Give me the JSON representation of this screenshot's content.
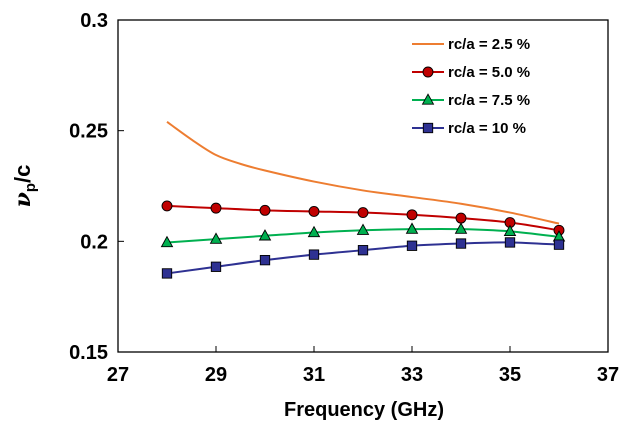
{
  "chart_data": {
    "type": "line",
    "xlabel": "Frequency (GHz)",
    "ylabel_base": "ν",
    "ylabel_sub": "p",
    "ylabel_rest": "/c",
    "xlim": [
      27,
      37
    ],
    "ylim": [
      0.15,
      0.3
    ],
    "xticks": [
      27,
      29,
      31,
      33,
      35,
      37
    ],
    "yticks": [
      0.15,
      0.2,
      0.25,
      0.3
    ],
    "ytick_labels": [
      "0.15",
      "0.2",
      "0.25",
      "0.3"
    ],
    "grid": false,
    "legend_position": "top-right",
    "series": [
      {
        "name": "rc/a = 2.5 %",
        "color": "#ED7D31",
        "marker": "none",
        "x": [
          28,
          28.5,
          29,
          29.5,
          30,
          31,
          32,
          33,
          34,
          35,
          36
        ],
        "y": [
          0.254,
          0.246,
          0.239,
          0.235,
          0.232,
          0.227,
          0.223,
          0.22,
          0.217,
          0.213,
          0.208
        ]
      },
      {
        "name": "rc/a = 5.0 %",
        "color": "#C00000",
        "marker": "circle",
        "x": [
          28,
          29,
          30,
          31,
          32,
          33,
          34,
          35,
          36
        ],
        "y": [
          0.216,
          0.215,
          0.214,
          0.2135,
          0.213,
          0.212,
          0.2105,
          0.2085,
          0.205
        ]
      },
      {
        "name": "rc/a = 7.5 %",
        "color": "#00B050",
        "marker": "triangle",
        "x": [
          28,
          29,
          30,
          31,
          32,
          33,
          34,
          35,
          36
        ],
        "y": [
          0.1995,
          0.201,
          0.2025,
          0.204,
          0.205,
          0.2055,
          0.2055,
          0.2045,
          0.202
        ]
      },
      {
        "name": "rc/a = 10 %",
        "color": "#2E3192",
        "marker": "square",
        "x": [
          28,
          29,
          30,
          31,
          32,
          33,
          34,
          35,
          36
        ],
        "y": [
          0.1855,
          0.1885,
          0.1915,
          0.194,
          0.196,
          0.198,
          0.199,
          0.1995,
          0.1985
        ]
      }
    ]
  }
}
